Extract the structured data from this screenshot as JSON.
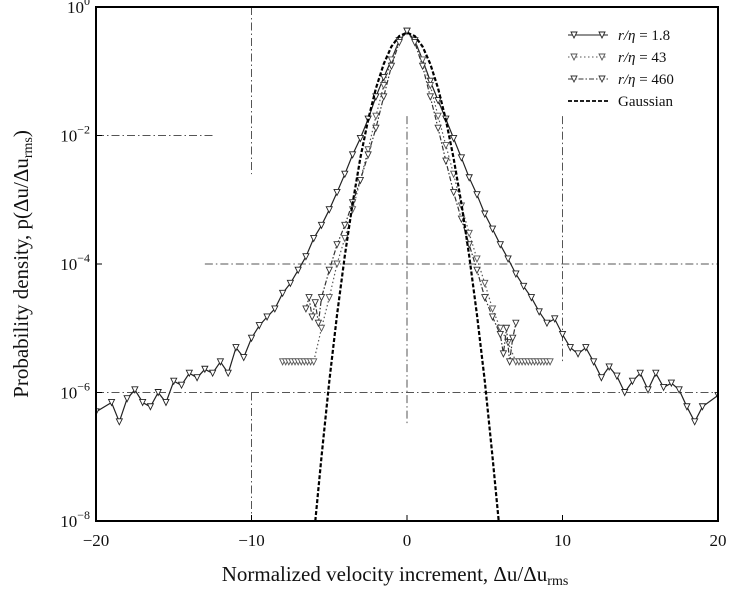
{
  "chart_data": {
    "type": "line",
    "yscale": "log",
    "xlabel": "Normalized velocity increment, Δu/Δu",
    "xlabel_sub": "rms",
    "ylabel": "Probability density, p(Δu/Δu",
    "ylabel_sub": "rms",
    "ylabel_close": ")",
    "xlim": [
      -20,
      20
    ],
    "ylim": [
      1e-08,
      1
    ],
    "xticks": [
      {
        "v": -20,
        "label": "−20"
      },
      {
        "v": -10,
        "label": "−10"
      },
      {
        "v": 0,
        "label": "0"
      },
      {
        "v": 10,
        "label": "10"
      },
      {
        "v": 20,
        "label": "20"
      }
    ],
    "yticks": [
      {
        "v": 1,
        "base": "10",
        "exp": "0"
      },
      {
        "v": 0.01,
        "base": "10",
        "exp": "−2"
      },
      {
        "v": 0.0001,
        "base": "10",
        "exp": "−4"
      },
      {
        "v": 1e-06,
        "base": "10",
        "exp": "−6"
      },
      {
        "v": 1e-08,
        "base": "10",
        "exp": "−8"
      }
    ],
    "legend_position": "top-right",
    "series": [
      {
        "name": "r/η = 1.8",
        "legend": {
          "italic": "r/η",
          "value": " = 1.8"
        },
        "color": "#222222",
        "dash": "",
        "marker": "triangle-down",
        "x": [
          -20,
          -19,
          -18.5,
          -18,
          -17.5,
          -17,
          -16.5,
          -16,
          -15.5,
          -15,
          -14.5,
          -14,
          -13.5,
          -13,
          -12.5,
          -12,
          -11.5,
          -11,
          -10.5,
          -10,
          -9.5,
          -9,
          -8.5,
          -8,
          -7.5,
          -7,
          -6.5,
          -6,
          -5.5,
          -5,
          -4.5,
          -4,
          -3.5,
          -3,
          -2.5,
          -2,
          -1.5,
          -1,
          -0.5,
          0,
          0.5,
          1,
          1.5,
          2,
          2.5,
          3,
          3.5,
          4,
          4.5,
          5,
          5.5,
          6,
          6.5,
          7,
          7.5,
          8,
          8.5,
          9,
          9.5,
          10,
          10.5,
          11,
          11.5,
          12,
          12.5,
          13,
          13.5,
          14,
          14.5,
          15,
          15.5,
          16,
          16.5,
          17,
          17.5,
          18,
          18.5,
          19,
          20
        ],
        "y": [
          5e-07,
          7e-07,
          3.5e-07,
          8e-07,
          1.1e-06,
          7e-07,
          6e-07,
          1e-06,
          7e-07,
          1.5e-06,
          1.3e-06,
          2e-06,
          1.7e-06,
          2.3e-06,
          2e-06,
          3e-06,
          2e-06,
          5e-06,
          3.5e-06,
          7e-06,
          1.1e-05,
          1.5e-05,
          2e-05,
          3.5e-05,
          5e-05,
          8e-05,
          0.00013,
          0.00025,
          0.0004,
          0.0007,
          0.0013,
          0.0025,
          0.005,
          0.009,
          0.018,
          0.04,
          0.08,
          0.15,
          0.3,
          0.42,
          0.3,
          0.15,
          0.07,
          0.035,
          0.018,
          0.009,
          0.0045,
          0.0022,
          0.0012,
          0.0006,
          0.00035,
          0.0002,
          0.00012,
          7e-05,
          4.5e-05,
          3e-05,
          1.8e-05,
          1.2e-05,
          1.4e-05,
          8e-06,
          5e-06,
          4e-06,
          5e-06,
          3e-06,
          1.7e-06,
          2.5e-06,
          1.8e-06,
          1e-06,
          1.5e-06,
          2e-06,
          1.1e-06,
          2e-06,
          1.2e-06,
          1.4e-06,
          1.1e-06,
          6e-07,
          3.5e-07,
          6e-07,
          9e-07
        ]
      },
      {
        "name": "r/η = 43",
        "legend": {
          "italic": "r/η",
          "value": " = 43"
        },
        "color": "#555555",
        "dash": "1.5,2.5",
        "marker": "triangle-down",
        "x": [
          -8,
          -7.8,
          -7.6,
          -7.4,
          -7.2,
          -7,
          -6.8,
          -6.6,
          -6.4,
          -6.2,
          -6,
          -5.5,
          -5,
          -4.5,
          -4,
          -3.5,
          -3,
          -2.5,
          -2,
          -1.5,
          -1,
          -0.5,
          0,
          0.5,
          1,
          1.5,
          2,
          2.5,
          3,
          3.5,
          4,
          4.5,
          5,
          5.5,
          6,
          6.5,
          7,
          7.2,
          7.4,
          7.6,
          7.8,
          8,
          8.2,
          8.4,
          8.6,
          8.8,
          9,
          9.2
        ],
        "y": [
          3e-06,
          3e-06,
          3e-06,
          3e-06,
          3e-06,
          3e-06,
          3e-06,
          3e-06,
          3e-06,
          3e-06,
          3e-06,
          1e-05,
          3e-05,
          0.0001,
          0.00025,
          0.0007,
          0.002,
          0.006,
          0.02,
          0.06,
          0.15,
          0.3,
          0.42,
          0.3,
          0.15,
          0.06,
          0.02,
          0.007,
          0.0025,
          0.0008,
          0.0003,
          0.00012,
          5e-05,
          2e-05,
          1e-05,
          6e-06,
          3e-06,
          3e-06,
          3e-06,
          3e-06,
          3e-06,
          3e-06,
          3e-06,
          3e-06,
          3e-06,
          3e-06,
          3e-06,
          3e-06
        ]
      },
      {
        "name": "r/η = 460",
        "legend": {
          "italic": "r/η",
          "value": " = 460"
        },
        "color": "#333333",
        "dash": "5,2,1.5,2",
        "marker": "triangle-down",
        "x": [
          -6.5,
          -6.3,
          -6.1,
          -5.9,
          -5.7,
          -5.5,
          -5,
          -4.5,
          -4,
          -3.5,
          -3,
          -2.5,
          -2,
          -1.5,
          -1,
          -0.5,
          0,
          0.5,
          1,
          1.5,
          2,
          2.5,
          3,
          3.5,
          4,
          4.5,
          5,
          5.5,
          6,
          6.2,
          6.4,
          6.6,
          6.8,
          7
        ],
        "y": [
          2e-05,
          3e-05,
          1.5e-05,
          2.5e-05,
          1.2e-05,
          3e-05,
          8e-05,
          0.0002,
          0.0004,
          0.0009,
          0.002,
          0.005,
          0.013,
          0.04,
          0.12,
          0.28,
          0.42,
          0.28,
          0.12,
          0.04,
          0.013,
          0.004,
          0.0013,
          0.0005,
          0.0002,
          8e-05,
          3e-05,
          1.5e-05,
          8e-06,
          4e-06,
          1e-05,
          3e-06,
          7e-06,
          1.2e-05
        ]
      },
      {
        "name": "Gaussian",
        "legend": {
          "italic": "",
          "value": "Gaussian"
        },
        "color": "#000000",
        "dash": "4,2",
        "marker": "none",
        "x": [
          -5.9,
          -5.5,
          -5,
          -4.5,
          -4,
          -3.5,
          -3,
          -2.5,
          -2,
          -1.5,
          -1,
          -0.5,
          0,
          0.5,
          1,
          1.5,
          2,
          2.5,
          3,
          3.5,
          4,
          4.5,
          5,
          5.5,
          5.9
        ],
        "y": [
          1e-08,
          1e-07,
          1.5e-06,
          1.6e-05,
          0.000134,
          0.000873,
          0.00443,
          0.0175,
          0.054,
          0.1295,
          0.242,
          0.352,
          0.399,
          0.352,
          0.242,
          0.1295,
          0.054,
          0.0175,
          0.00443,
          0.000873,
          0.000134,
          1.6e-05,
          1.5e-06,
          1e-07,
          1e-08
        ]
      }
    ]
  }
}
